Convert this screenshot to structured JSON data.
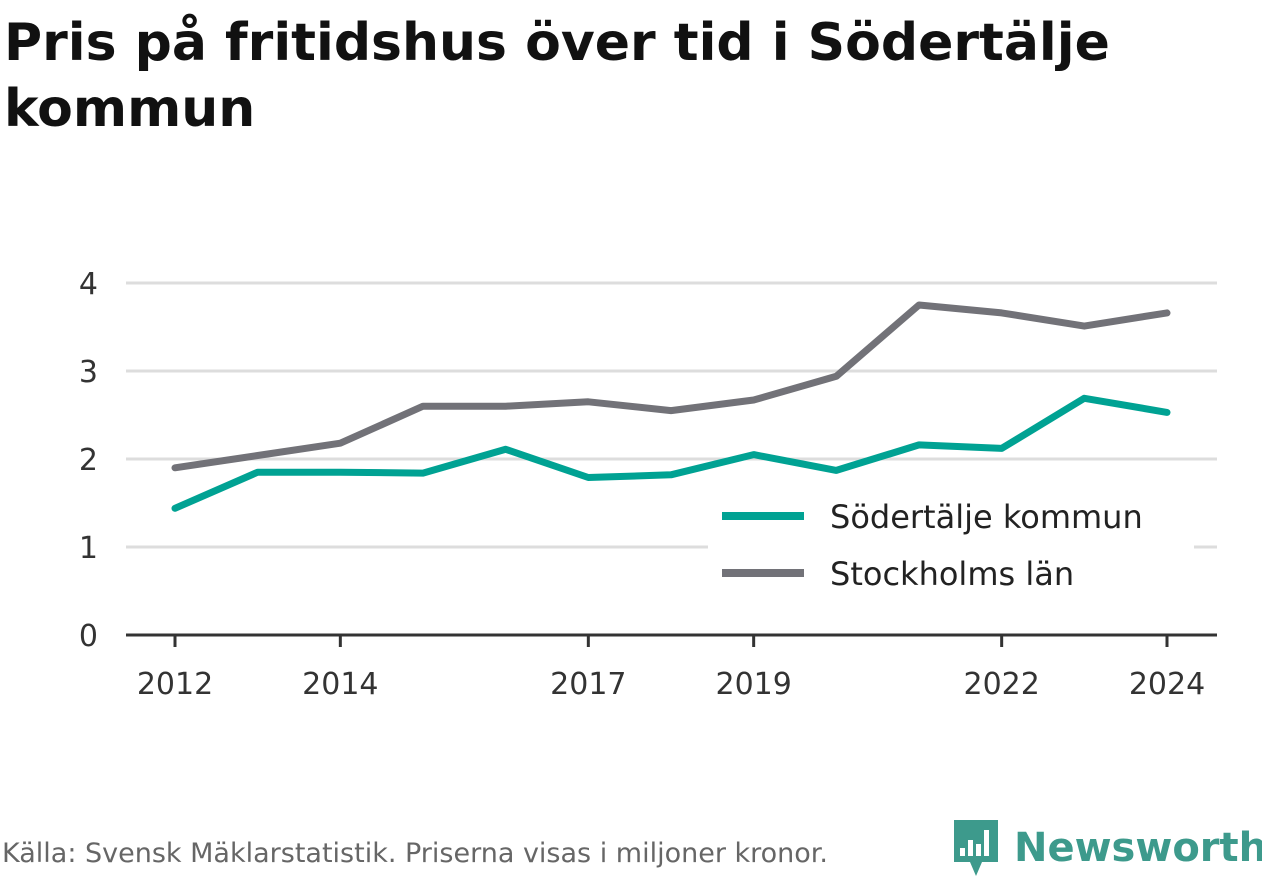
{
  "title": "Pris på fritidshus över tid i Södertälje kommun",
  "footer": {
    "source": "Källa: Svensk Mäklarstatistik. Priserna visas i miljoner kronor.",
    "brand": "Newsworthy"
  },
  "colors": {
    "sodertalje": "#00a293",
    "stockholm": "#727278",
    "brand": "#3d9a8c"
  },
  "chart_data": {
    "type": "line",
    "title": "Pris på fritidshus över tid i Södertälje kommun",
    "xlabel": "",
    "ylabel": "",
    "x": [
      2012,
      2013,
      2014,
      2015,
      2016,
      2017,
      2018,
      2019,
      2020,
      2021,
      2022,
      2023,
      2024
    ],
    "x_tick_labels": [
      "2012",
      "2014",
      "2017",
      "2019",
      "2022",
      "2024"
    ],
    "y_ticks": [
      0,
      1,
      2,
      3,
      4
    ],
    "ylim": [
      0,
      4
    ],
    "grid": true,
    "legend_position": "bottom-right",
    "series": [
      {
        "name": "Södertälje kommun",
        "color": "#00a293",
        "values": [
          1.44,
          1.85,
          1.85,
          1.84,
          2.11,
          1.79,
          1.82,
          2.05,
          1.87,
          2.16,
          2.12,
          2.69,
          2.53
        ]
      },
      {
        "name": "Stockholms län",
        "color": "#727278",
        "values": [
          1.9,
          2.04,
          2.18,
          2.6,
          2.6,
          2.65,
          2.55,
          2.67,
          2.94,
          3.75,
          3.66,
          3.51,
          3.66
        ]
      }
    ]
  }
}
